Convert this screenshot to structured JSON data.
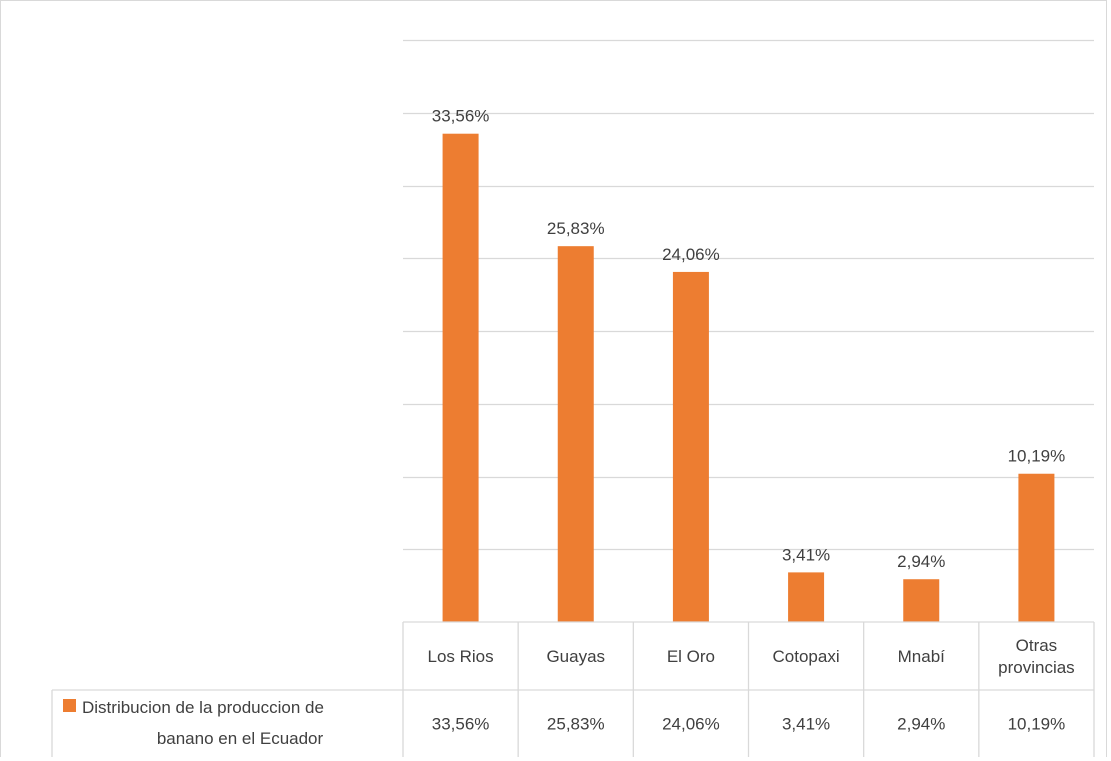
{
  "chart_data": {
    "type": "bar",
    "categories": [
      [
        "Los Rios"
      ],
      [
        "Guayas"
      ],
      [
        "El Oro"
      ],
      [
        "Cotopaxi"
      ],
      [
        "Mnabí"
      ],
      [
        "Otras",
        "provincias"
      ]
    ],
    "values": [
      33.56,
      25.83,
      24.06,
      3.41,
      2.94,
      10.19
    ],
    "value_labels": [
      "33,56%",
      "25,83%",
      "24,06%",
      "3,41%",
      "2,94%",
      "10,19%"
    ],
    "series_name": [
      "Distribucion de la produccion de",
      "banano en el Ecuador"
    ],
    "ylim": [
      0,
      40
    ],
    "gridline_step": 5,
    "grid": true,
    "data_table": true,
    "colors": {
      "bar": "#ED7D31",
      "grid": "#d9d9d9",
      "text": "#404040"
    }
  }
}
